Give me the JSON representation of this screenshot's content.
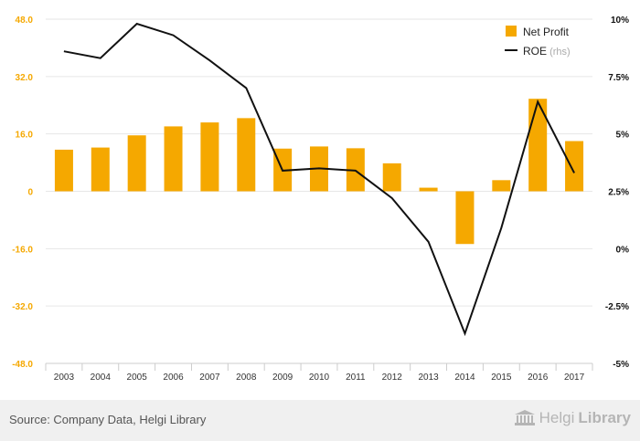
{
  "chart_data": {
    "type": "bar",
    "categories": [
      "2003",
      "2004",
      "2005",
      "2006",
      "2007",
      "2008",
      "2009",
      "2010",
      "2011",
      "2012",
      "2013",
      "2014",
      "2015",
      "2016",
      "2017"
    ],
    "series": [
      {
        "name": "Net Profit",
        "type": "bar",
        "axis": "left",
        "color": "#f5a800",
        "values": [
          11.6,
          12.2,
          15.6,
          18.1,
          19.2,
          20.4,
          11.9,
          12.5,
          12.0,
          7.8,
          1.0,
          -14.7,
          3.1,
          25.8,
          14.0
        ]
      },
      {
        "name": "ROE",
        "suffix": " (rhs)",
        "type": "line",
        "axis": "right",
        "color": "#111111",
        "values": [
          8.6,
          8.3,
          9.8,
          9.3,
          8.2,
          7.0,
          3.4,
          3.5,
          3.4,
          2.2,
          0.3,
          -3.7,
          0.9,
          6.4,
          3.3
        ]
      }
    ],
    "left_axis": {
      "ticks": [
        "48.0",
        "32.0",
        "16.0",
        "0",
        "-16.0",
        "-32.0",
        "-48.0"
      ],
      "ylim": [
        -48,
        48
      ],
      "color": "#f5a800"
    },
    "right_axis": {
      "ticks": [
        "10%",
        "7.5%",
        "5%",
        "2.5%",
        "0%",
        "-2.5%",
        "-5%"
      ],
      "ylim": [
        -5,
        10
      ]
    },
    "grid": true,
    "legend_position": "top-right"
  },
  "footer": {
    "source": "Source: Company Data, Helgi Library",
    "logo_part1": "Helgi",
    "logo_part2": "Library"
  }
}
